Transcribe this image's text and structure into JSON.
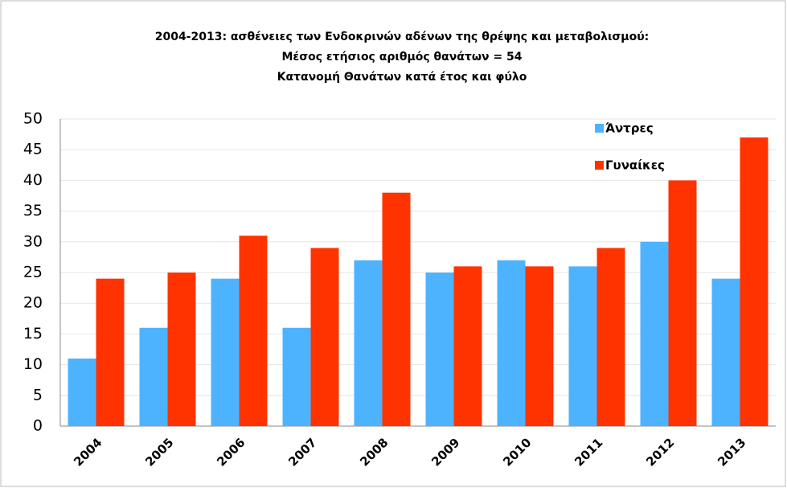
{
  "chart_data": {
    "type": "bar",
    "title": [
      "2004-2013:   ασθένειες των Ενδοκρινών αδένων της θρέψης και μεταβολισμού:",
      "Μέσος ετήσιος αριθμός θανάτων = 54",
      "Κατανομή Θανάτων κατά έτος και φύλο"
    ],
    "categories": [
      "2004",
      "2005",
      "2006",
      "2007",
      "2008",
      "2009",
      "2010",
      "2011",
      "2012",
      "2013"
    ],
    "series": [
      {
        "name": "Άντρες",
        "color": "#4db3ff",
        "values": [
          11,
          16,
          24,
          16,
          27,
          25,
          27,
          26,
          30,
          24
        ]
      },
      {
        "name": "Γυναίκες",
        "color": "#ff3300",
        "values": [
          24,
          25,
          31,
          29,
          38,
          26,
          26,
          29,
          40,
          47
        ]
      }
    ],
    "ylim": [
      0,
      50
    ],
    "yticks": [
      0,
      5,
      10,
      15,
      20,
      25,
      30,
      35,
      40,
      45,
      50
    ],
    "grid": true,
    "legend": "top-right"
  }
}
